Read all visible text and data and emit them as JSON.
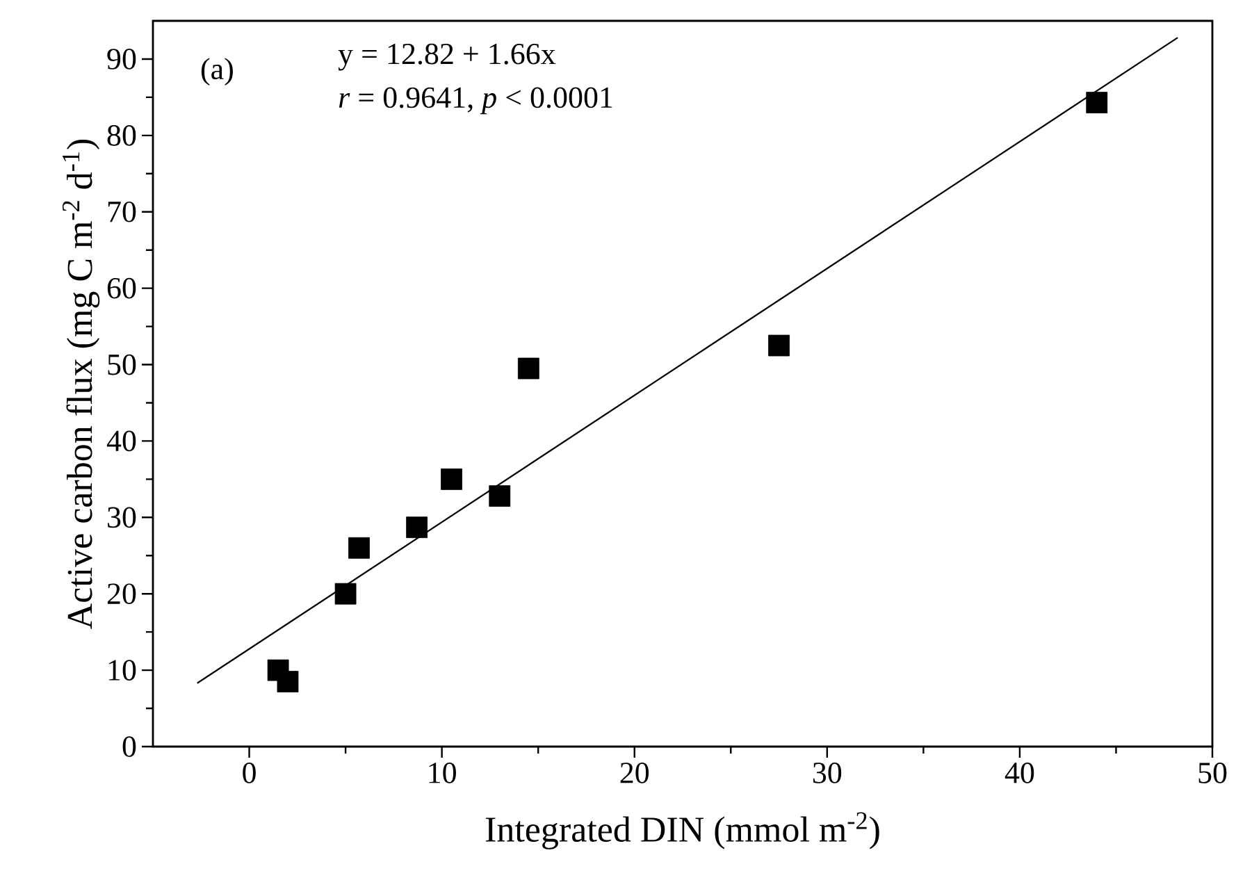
{
  "chart_data": {
    "type": "scatter",
    "xlabel": "Integrated DIN (mmol m$^{-2}$)",
    "ylabel": "Active carbon flux (mg C m$^{-2}$ d$^{-1}$)",
    "xlim": [
      -5,
      50
    ],
    "ylim": [
      0,
      95
    ],
    "xticks": [
      0,
      10,
      20,
      30,
      40,
      50
    ],
    "yticks": [
      0,
      10,
      20,
      30,
      40,
      50,
      60,
      70,
      80,
      90
    ],
    "marker": "square",
    "annotations": [
      "(a)",
      "y = 12.82 + 1.66x",
      "*r* = 0.9641, *p* < 0.0001"
    ],
    "series": [
      {
        "type": "scatter",
        "color": "#000000",
        "x": [
          1.5,
          2,
          5,
          5.7,
          8.7,
          10.5,
          13,
          14.5,
          27.5,
          44
        ],
        "values": [
          10,
          8.5,
          20,
          26,
          28.7,
          35,
          32.8,
          49.5,
          52.5,
          84.3
        ]
      },
      {
        "type": "line",
        "color": "#000000",
        "marker": "none",
        "x": [
          -2.7,
          48.2
        ],
        "values": [
          8.3,
          92.8
        ]
      }
    ]
  }
}
